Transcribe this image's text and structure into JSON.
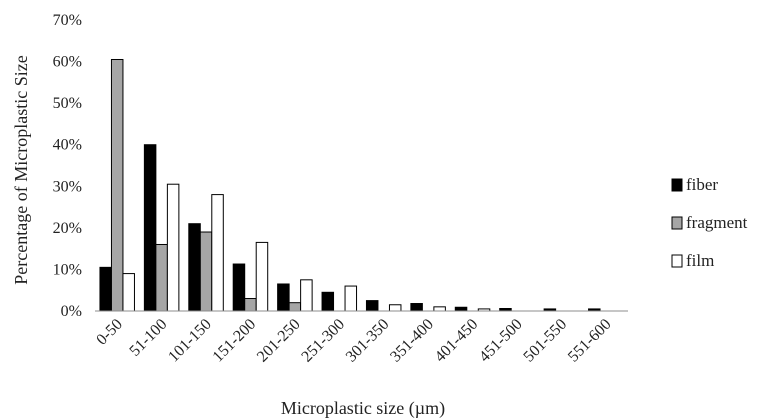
{
  "chart_data": {
    "type": "bar",
    "xlabel": "Microplastic size (µm)",
    "ylabel": "Percentage of Microplastic Size",
    "ylim": [
      0,
      70
    ],
    "y_tick_step": 10,
    "y_tick_format": "percent",
    "grid": false,
    "legend_position": "right",
    "categories": [
      "0-50",
      "51-100",
      "101-150",
      "151-200",
      "201-250",
      "251-300",
      "301-350",
      "351-400",
      "401-450",
      "451-500",
      "501-550",
      "551-600"
    ],
    "series": [
      {
        "name": "fiber",
        "color": "#000000",
        "values": [
          10.5,
          40,
          21,
          11.3,
          6.5,
          4.5,
          2.5,
          1.8,
          0.9,
          0.6,
          0.5,
          0.5
        ]
      },
      {
        "name": "fragment",
        "color": "#a6a6a6",
        "values": [
          60.5,
          16,
          19,
          3,
          2,
          0,
          0,
          0,
          0,
          0,
          0,
          0
        ]
      },
      {
        "name": "film",
        "color": "#ffffff",
        "values": [
          9,
          30.5,
          28,
          16.5,
          7.5,
          6,
          1.5,
          1,
          0.5,
          0,
          0,
          0
        ]
      }
    ]
  }
}
